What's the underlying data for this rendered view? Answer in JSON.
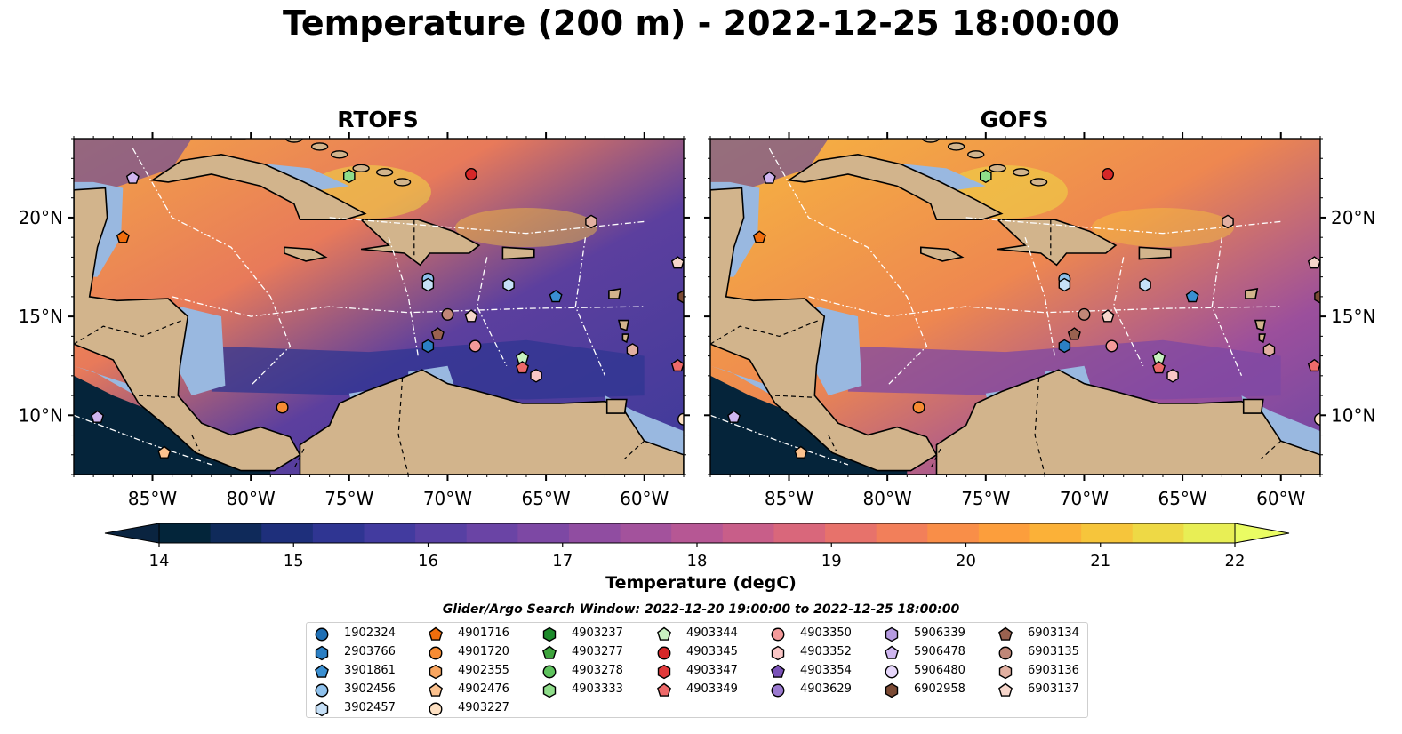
{
  "title": "Temperature (200 m) - 2022-12-25 18:00:00",
  "chart_data": [
    {
      "type": "heatmap",
      "title": "RTOFS",
      "x_ticks": [
        "85°W",
        "80°W",
        "75°W",
        "70°W",
        "65°W",
        "60°W"
      ],
      "x_tick_values": [
        -85,
        -80,
        -75,
        -70,
        -65,
        -60
      ],
      "y_ticks": [
        "20°N",
        "15°N",
        "10°N"
      ],
      "y_tick_values": [
        20,
        15,
        10
      ],
      "xlim": [
        -89,
        -58
      ],
      "ylim": [
        7,
        24
      ],
      "markers": [
        {
          "id": "5906478",
          "lon": -86.0,
          "lat": 22.0
        },
        {
          "id": "4901716",
          "lon": -86.5,
          "lat": 19.0
        },
        {
          "id": "4903333",
          "lon": -75.0,
          "lat": 22.1
        },
        {
          "id": "4903345",
          "lon": -68.8,
          "lat": 22.2
        },
        {
          "id": "6903136",
          "lon": -62.7,
          "lat": 19.8
        },
        {
          "id": "6903137",
          "lon": -58.3,
          "lat": 17.7
        },
        {
          "id": "3902456",
          "lon": -71.0,
          "lat": 16.9
        },
        {
          "id": "3902457",
          "lon": -71.0,
          "lat": 16.6
        },
        {
          "id": "3902457",
          "lon": -66.9,
          "lat": 16.6
        },
        {
          "id": "3901861",
          "lon": -64.5,
          "lat": 16.0
        },
        {
          "id": "6902958",
          "lon": -58.0,
          "lat": 16.0
        },
        {
          "id": "6903135",
          "lon": -70.0,
          "lat": 15.1
        },
        {
          "id": "6903137",
          "lon": -68.8,
          "lat": 15.0
        },
        {
          "id": "6903134",
          "lon": -70.5,
          "lat": 14.1
        },
        {
          "id": "2903766",
          "lon": -71.0,
          "lat": 13.5
        },
        {
          "id": "4903350",
          "lon": -68.6,
          "lat": 13.5
        },
        {
          "id": "4903344",
          "lon": -66.2,
          "lat": 12.9
        },
        {
          "id": "4903349",
          "lon": -66.2,
          "lat": 12.4
        },
        {
          "id": "6903136",
          "lon": -60.6,
          "lat": 13.3
        },
        {
          "id": "4903349",
          "lon": -58.3,
          "lat": 12.5
        },
        {
          "id": "4903352",
          "lon": -65.5,
          "lat": 12.0
        },
        {
          "id": "4901720",
          "lon": -78.4,
          "lat": 10.4
        },
        {
          "id": "5906478",
          "lon": -87.8,
          "lat": 9.9
        },
        {
          "id": "4902476",
          "lon": -84.4,
          "lat": 8.1
        },
        {
          "id": "4903227",
          "lon": -58.0,
          "lat": 9.8
        }
      ]
    },
    {
      "type": "heatmap",
      "title": "GOFS",
      "x_ticks": [
        "85°W",
        "80°W",
        "75°W",
        "70°W",
        "65°W",
        "60°W"
      ],
      "x_tick_values": [
        -85,
        -80,
        -75,
        -70,
        -65,
        -60
      ],
      "y_ticks": [
        "20°N",
        "15°N",
        "10°N"
      ],
      "y_tick_values": [
        20,
        15,
        10
      ],
      "xlim": [
        -89,
        -58
      ],
      "ylim": [
        7,
        24
      ],
      "markers": "same as RTOFS"
    }
  ],
  "colorbar": {
    "label": "Temperature (degC)",
    "ticks": [
      "14",
      "15",
      "16",
      "17",
      "18",
      "19",
      "20",
      "21",
      "22"
    ],
    "range": [
      14,
      22
    ],
    "colors": [
      "#03253a",
      "#0f2a5a",
      "#1e2f7b",
      "#2f3592",
      "#423b9f",
      "#5740a3",
      "#6a44a5",
      "#7d48a4",
      "#904da1",
      "#a3529c",
      "#b65794",
      "#c85e89",
      "#d9677b",
      "#e7726b",
      "#f27f5a",
      "#f98e48",
      "#fc9e3c",
      "#fbb138",
      "#f6c53b",
      "#eed945",
      "#e8ee55"
    ],
    "extend_low": "#0a2440",
    "extend_high": "#eafc63"
  },
  "search_window": "Glider/Argo Search Window: 2022-12-20 19:00:00 to 2022-12-25 18:00:00",
  "legend": [
    {
      "id": "1902324",
      "shape": "circle",
      "color": "#1f6fb4"
    },
    {
      "id": "2903766",
      "shape": "hexagon",
      "color": "#2b7fc4"
    },
    {
      "id": "3901861",
      "shape": "pentagon",
      "color": "#3a8fd1"
    },
    {
      "id": "3902456",
      "shape": "circle",
      "color": "#8fc1ec"
    },
    {
      "id": "3902457",
      "shape": "hexagon",
      "color": "#c6e0f7"
    },
    {
      "id": "4901716",
      "shape": "pentagon",
      "color": "#f06d0d"
    },
    {
      "id": "4901720",
      "shape": "circle",
      "color": "#f68b33"
    },
    {
      "id": "4902355",
      "shape": "hexagon",
      "color": "#f9a55f"
    },
    {
      "id": "4902476",
      "shape": "pentagon",
      "color": "#fbc18e"
    },
    {
      "id": "4903227",
      "shape": "circle",
      "color": "#fde0c2"
    },
    {
      "id": "4903237",
      "shape": "hexagon",
      "color": "#1c8a2a"
    },
    {
      "id": "4903277",
      "shape": "pentagon",
      "color": "#3ea43d"
    },
    {
      "id": "4903278",
      "shape": "circle",
      "color": "#5ec25d"
    },
    {
      "id": "4903333",
      "shape": "hexagon",
      "color": "#8fdd8a"
    },
    {
      "id": "4903344",
      "shape": "pentagon",
      "color": "#c8f2c0"
    },
    {
      "id": "4903345",
      "shape": "circle",
      "color": "#d62728"
    },
    {
      "id": "4903347",
      "shape": "hexagon",
      "color": "#e0393a"
    },
    {
      "id": "4903349",
      "shape": "pentagon",
      "color": "#ee6a6a"
    },
    {
      "id": "4903350",
      "shape": "circle",
      "color": "#f49a9a"
    },
    {
      "id": "4903352",
      "shape": "hexagon",
      "color": "#fbc6c6"
    },
    {
      "id": "4903354",
      "shape": "pentagon",
      "color": "#7a52b8"
    },
    {
      "id": "4903629",
      "shape": "circle",
      "color": "#9b7ad0"
    },
    {
      "id": "5906339",
      "shape": "hexagon",
      "color": "#b59ae0"
    },
    {
      "id": "5906478",
      "shape": "pentagon",
      "color": "#cfb6f0"
    },
    {
      "id": "5906480",
      "shape": "circle",
      "color": "#e6d6fb"
    },
    {
      "id": "6902958",
      "shape": "hexagon",
      "color": "#7b4a34"
    },
    {
      "id": "6903134",
      "shape": "pentagon",
      "color": "#9a6250"
    },
    {
      "id": "6903135",
      "shape": "circle",
      "color": "#c08778"
    },
    {
      "id": "6903136",
      "shape": "hexagon",
      "color": "#e2b0a1"
    },
    {
      "id": "6903137",
      "shape": "pentagon",
      "color": "#f6d6cb"
    }
  ],
  "colors": {
    "land": "#d2b48c",
    "shelf": "#99b8e0",
    "abyss": "#05243a"
  }
}
